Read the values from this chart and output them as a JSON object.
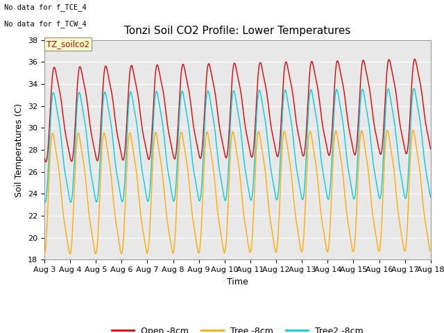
{
  "title": "Tonzi Soil CO2 Profile: Lower Temperatures",
  "xlabel": "Time",
  "ylabel": "Soil Temperatures (C)",
  "ylim": [
    18,
    38
  ],
  "yticks": [
    18,
    20,
    22,
    24,
    26,
    28,
    30,
    32,
    34,
    36,
    38
  ],
  "date_labels": [
    "Aug 3",
    "Aug 4",
    "Aug 5",
    "Aug 6",
    "Aug 7",
    "Aug 8",
    "Aug 9",
    "Aug 10",
    "Aug 11",
    "Aug 12",
    "Aug 13",
    "Aug 14",
    "Aug 15",
    "Aug 16",
    "Aug 17",
    "Aug 18"
  ],
  "annotations": [
    "No data for f_TCE_4",
    "No data for f_TCW_4"
  ],
  "legend_label": "TZ_soilco2",
  "open_color": "#dd0000",
  "tree_color": "#ffaa00",
  "tree2_color": "#00ccdd",
  "open_label": "Open -8cm",
  "tree_label": "Tree -8cm",
  "tree2_label": "Tree2 -8cm",
  "background_color": "#e8e8e8",
  "grid_color": "#ffffff",
  "title_fontsize": 11,
  "axis_fontsize": 9,
  "tick_fontsize": 8
}
